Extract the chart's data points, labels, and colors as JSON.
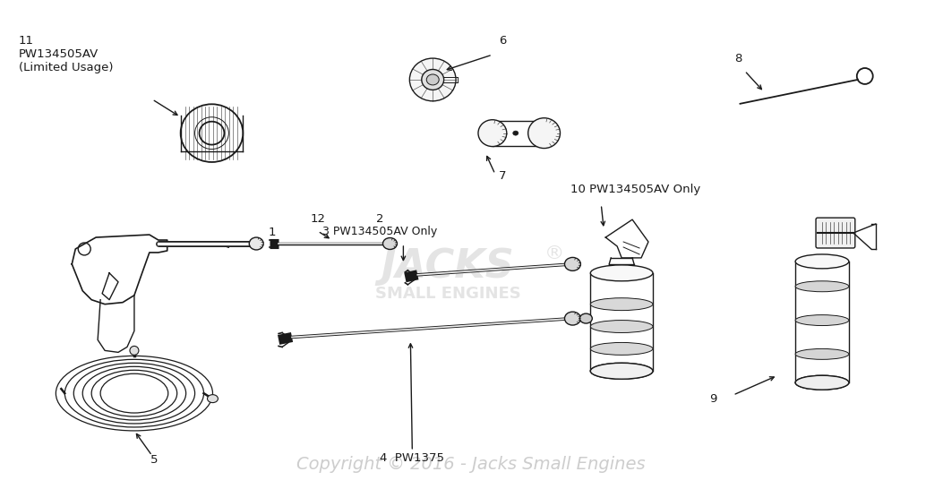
{
  "background_color": "#ffffff",
  "line_color": "#1a1a1a",
  "watermark_text": "Copyright © 2016 - Jacks Small Engines",
  "watermark_color": "#c8c8c8",
  "jacks_text1": "JACKS",
  "jacks_text2": "SMALL ENGINES",
  "label_11": "11\nPW134505AV\n(Limited Usage)",
  "label_6": "6",
  "label_7": "7",
  "label_8": "8",
  "label_10": "10 PW134505AV Only",
  "label_1": "1",
  "label_12": "12",
  "label_2": "2",
  "label_3": "3 PW134505AV Only",
  "label_4": "4  PW1375",
  "label_5": "5",
  "label_9": "9"
}
